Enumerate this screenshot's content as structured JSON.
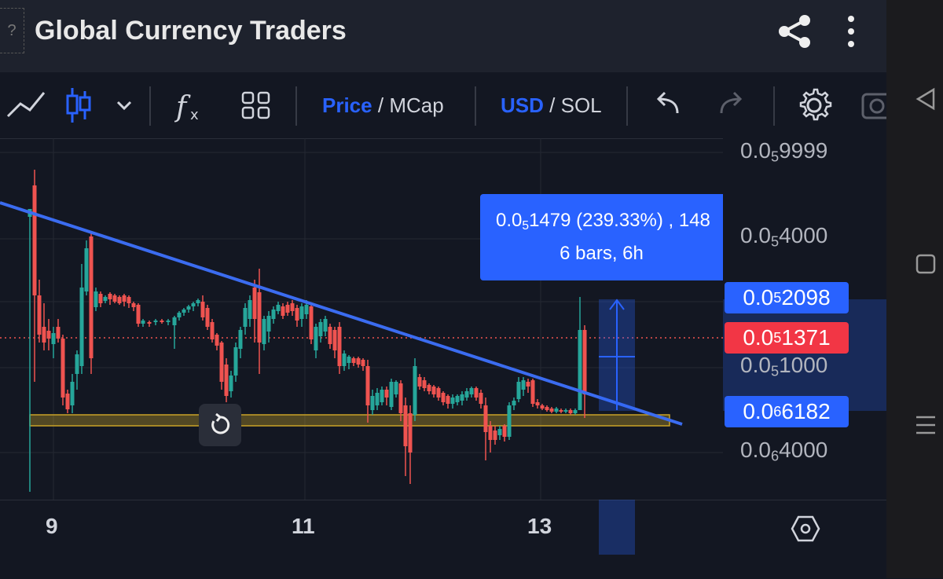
{
  "header": {
    "avatar_text": "?",
    "title": "Global Currency Traders",
    "share_icon": "share-icon",
    "menu_icon": "kebab-menu-icon"
  },
  "toolbar": {
    "price": "Price",
    "mcap": "MCap",
    "usd": "USD",
    "sol": "SOL",
    "slash": "/"
  },
  "chart": {
    "price_labels": [
      {
        "pre": "0.0",
        "sub": "5",
        "post": "9999"
      },
      {
        "pre": "0.0",
        "sub": "5",
        "post": "4000"
      },
      {
        "pre": "0.0",
        "sub": "5",
        "post": "1000"
      },
      {
        "pre": "0.0",
        "sub": "6",
        "post": "4000"
      }
    ],
    "tags": {
      "upper": {
        "pre": "0.0",
        "sub": "5",
        "post": "2098"
      },
      "current": {
        "pre": "0.0",
        "sub": "5",
        "post": "1371"
      },
      "lower": {
        "pre": "0.0",
        "sub": "6",
        "post": "6182"
      }
    },
    "time_labels": [
      "9",
      "11",
      "13"
    ],
    "tooltip": {
      "line1_pre": "0.0",
      "line1_sub": "5",
      "line1_post": "1479 (239.33%) , 148",
      "line2": "6 bars, 6h"
    },
    "colors": {
      "up": "#26a69a",
      "down": "#ef5350",
      "accent": "#2962ff",
      "trend": "#3b6cf0",
      "zone": "#c9a227"
    }
  }
}
